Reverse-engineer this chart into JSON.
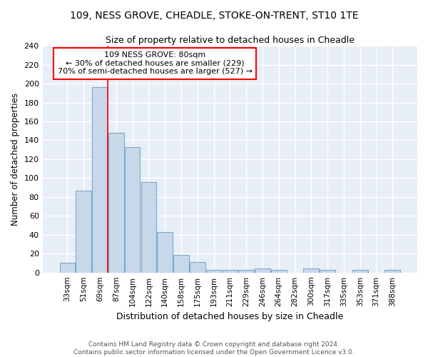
{
  "title_line1": "109, NESS GROVE, CHEADLE, STOKE-ON-TRENT, ST10 1TE",
  "title_line2": "Size of property relative to detached houses in Cheadle",
  "xlabel": "Distribution of detached houses by size in Cheadle",
  "ylabel": "Number of detached properties",
  "categories": [
    "33sqm",
    "51sqm",
    "69sqm",
    "87sqm",
    "104sqm",
    "122sqm",
    "140sqm",
    "158sqm",
    "175sqm",
    "193sqm",
    "211sqm",
    "229sqm",
    "246sqm",
    "264sqm",
    "282sqm",
    "300sqm",
    "317sqm",
    "335sqm",
    "353sqm",
    "371sqm",
    "388sqm"
  ],
  "values": [
    10,
    87,
    196,
    148,
    133,
    96,
    43,
    19,
    11,
    3,
    3,
    3,
    4,
    3,
    0,
    4,
    3,
    0,
    3,
    0,
    3
  ],
  "bar_color": "#c8d8eb",
  "bar_edge_color": "#7aa8cc",
  "background_color": "#e8eef5",
  "grid_color": "#ffffff",
  "red_line_x": 2.5,
  "annotation_text": "109 NESS GROVE: 80sqm\n← 30% of detached houses are smaller (229)\n70% of semi-detached houses are larger (527) →",
  "footer_line1": "Contains HM Land Registry data © Crown copyright and database right 2024.",
  "footer_line2": "Contains public sector information licensed under the Open Government Licence v3.0.",
  "ylim": [
    0,
    240
  ],
  "yticks": [
    0,
    20,
    40,
    60,
    80,
    100,
    120,
    140,
    160,
    180,
    200,
    220,
    240
  ]
}
